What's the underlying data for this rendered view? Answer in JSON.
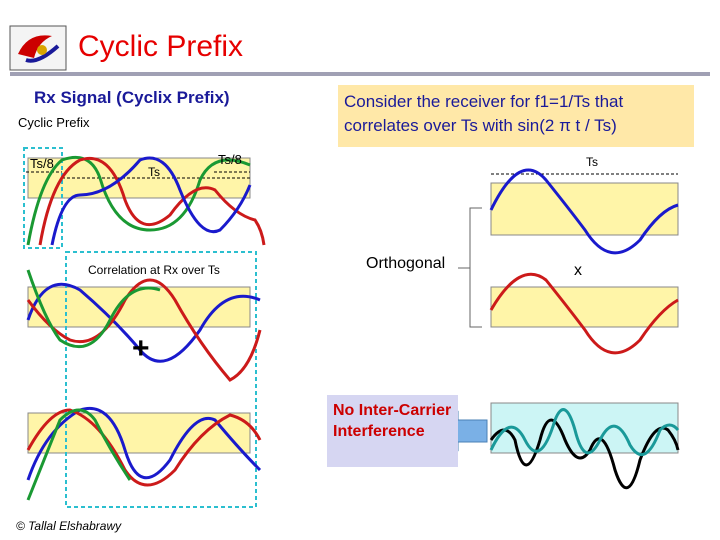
{
  "slide": {
    "title": "Cyclic Prefix",
    "rx_heading": "Rx Signal (Cyclix Prefix)",
    "cyclic_prefix_label": "Cyclic Prefix",
    "ts8_left": "Ts/8",
    "ts_mid": "Ts",
    "ts8_right": "Ts/8",
    "correlation_label": "Correlation at Rx over Ts",
    "plus_sign": "+",
    "consider_line1": "Consider the receiver for f1=1/Ts that",
    "consider_line2": "correlates over Ts with sin(2 π t / Ts)",
    "ts_right": "Ts",
    "orthogonal_label": "Orthogonal",
    "times_sign": "x",
    "no_ici": "No Inter-Carrier Interference",
    "copyright": "© Tallal Elshabrawy"
  },
  "colors": {
    "title": "#e60000",
    "heading": "#1a1a99",
    "panel_fill": "#fff5a8",
    "panel_fill_cyan": "#ccf5f5",
    "wave_blue": "#1a1acc",
    "wave_red": "#cc1a1a",
    "wave_green": "#1a9933",
    "wave_black": "#000000",
    "highlight_box": "#2bbfcf",
    "callout_fill": "#d6d6f2",
    "arrow_fill": "#7ab0e6"
  }
}
